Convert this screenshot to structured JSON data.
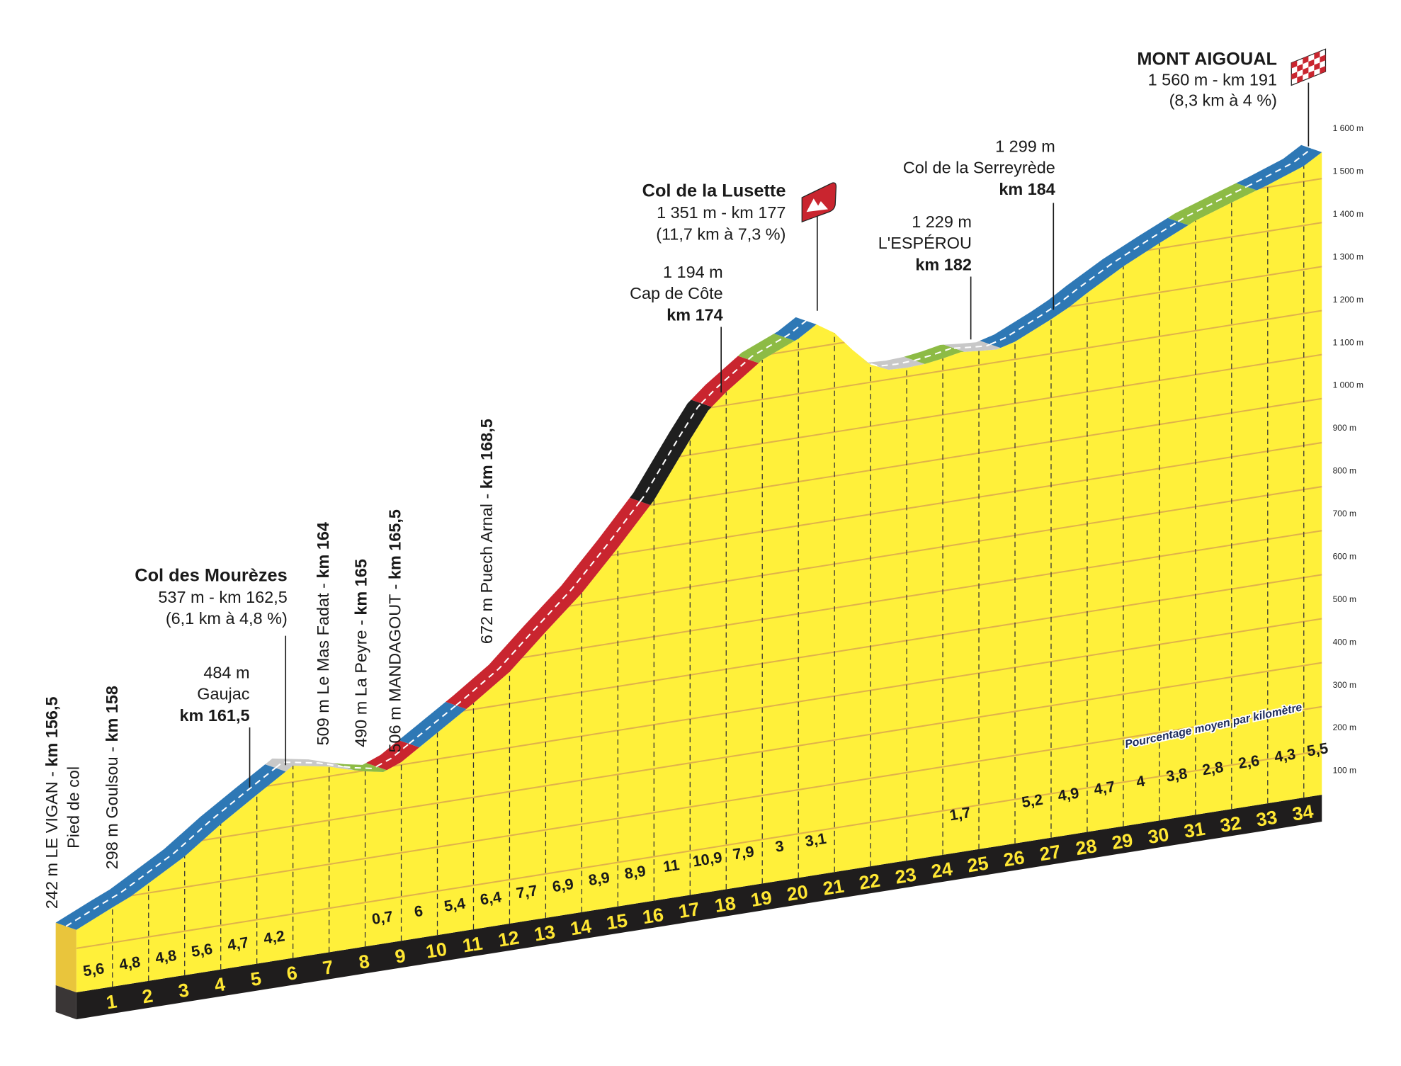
{
  "chart_data": {
    "type": "area",
    "title": "",
    "xlabel": "",
    "ylabel": "",
    "y_unit": "m",
    "y_ticks": [
      "100 m",
      "200 m",
      "300 m",
      "400 m",
      "500 m",
      "600 m",
      "700 m",
      "800 m",
      "900 m",
      "1 000 m",
      "1 100 m",
      "1 200 m",
      "1 300 m",
      "1 400 m",
      "1 500 m",
      "1 600 m"
    ],
    "y_tick_values": [
      100,
      200,
      300,
      400,
      500,
      600,
      700,
      800,
      900,
      1000,
      1100,
      1200,
      1300,
      1400,
      1500,
      1600
    ],
    "ylim": [
      100,
      1600
    ],
    "xlim": [
      0,
      34.5
    ],
    "x_tick_labels": [
      "1",
      "2",
      "3",
      "4",
      "5",
      "6",
      "7",
      "8",
      "9",
      "10",
      "11",
      "12",
      "13",
      "14",
      "15",
      "16",
      "17",
      "18",
      "19",
      "20",
      "21",
      "22",
      "23",
      "24",
      "25",
      "26",
      "27",
      "28",
      "29",
      "30",
      "31",
      "32",
      "33",
      "34"
    ],
    "profile": [
      [
        0,
        242
      ],
      [
        1,
        280
      ],
      [
        1.5,
        298
      ],
      [
        2,
        322
      ],
      [
        3,
        370
      ],
      [
        4,
        430
      ],
      [
        5,
        484
      ],
      [
        6,
        537
      ],
      [
        7,
        522
      ],
      [
        7.5,
        509
      ],
      [
        8,
        498
      ],
      [
        8.5,
        490
      ],
      [
        9,
        506
      ],
      [
        10,
        560
      ],
      [
        11,
        614
      ],
      [
        12,
        672
      ],
      [
        13,
        750
      ],
      [
        14,
        825
      ],
      [
        15,
        915
      ],
      [
        16,
        1010
      ],
      [
        17,
        1135
      ],
      [
        17.5,
        1194
      ],
      [
        18,
        1230
      ],
      [
        19,
        1290
      ],
      [
        20,
        1325
      ],
      [
        20.5,
        1351
      ],
      [
        21,
        1325
      ],
      [
        21.5,
        1280
      ],
      [
        22,
        1240
      ],
      [
        22.5,
        1222
      ],
      [
        23,
        1220
      ],
      [
        23.5,
        1222
      ],
      [
        24,
        1228
      ],
      [
        24.5,
        1236
      ],
      [
        25,
        1232
      ],
      [
        25.5,
        1229
      ],
      [
        26,
        1240
      ],
      [
        27,
        1278
      ],
      [
        27.5,
        1299
      ],
      [
        28,
        1325
      ],
      [
        29,
        1372
      ],
      [
        30,
        1412
      ],
      [
        31,
        1450
      ],
      [
        32,
        1478
      ],
      [
        33,
        1505
      ],
      [
        34,
        1535
      ],
      [
        34.5,
        1560
      ]
    ],
    "gradient_label_title": "Pourcentage moyen par kilomètre",
    "gradients": [
      {
        "segment": 1,
        "value": "5,6"
      },
      {
        "segment": 2,
        "value": "4,8"
      },
      {
        "segment": 3,
        "value": "4,8"
      },
      {
        "segment": 4,
        "value": "5,6"
      },
      {
        "segment": 5,
        "value": "4,7"
      },
      {
        "segment": 6,
        "value": "4,2"
      },
      {
        "segment": 9,
        "value": "0,7"
      },
      {
        "segment": 10,
        "value": "6"
      },
      {
        "segment": 11,
        "value": "5,4"
      },
      {
        "segment": 12,
        "value": "6,4"
      },
      {
        "segment": 13,
        "value": "7,7"
      },
      {
        "segment": 14,
        "value": "6,9"
      },
      {
        "segment": 15,
        "value": "8,9"
      },
      {
        "segment": 16,
        "value": "8,9"
      },
      {
        "segment": 17,
        "value": "11"
      },
      {
        "segment": 18,
        "value": "10,9"
      },
      {
        "segment": 19,
        "value": "7,9"
      },
      {
        "segment": 20,
        "value": "3"
      },
      {
        "segment": 21,
        "value": "3,1"
      },
      {
        "segment": 25,
        "value": "1,7"
      },
      {
        "segment": 27,
        "value": "5,2"
      },
      {
        "segment": 28,
        "value": "4,9"
      },
      {
        "segment": 29,
        "value": "4,7"
      },
      {
        "segment": 30,
        "value": "4"
      },
      {
        "segment": 31,
        "value": "3,8"
      },
      {
        "segment": 32,
        "value": "2,8"
      },
      {
        "segment": 33,
        "value": "2,6"
      },
      {
        "segment": 34,
        "value": "4,3"
      },
      {
        "segment": 35,
        "value": "5,5"
      }
    ],
    "road_segments": [
      {
        "from": 0,
        "to": 5.8,
        "category": "3-6"
      },
      {
        "from": 5.8,
        "to": 7.7,
        "category": "descent"
      },
      {
        "from": 7.7,
        "to": 8.6,
        "category": "0-3"
      },
      {
        "from": 8.6,
        "to": 9.5,
        "category": "6-9"
      },
      {
        "from": 9.5,
        "to": 10.8,
        "category": "3-6"
      },
      {
        "from": 10.8,
        "to": 15.9,
        "category": "6-9"
      },
      {
        "from": 15.9,
        "to": 17.6,
        "category": "9+"
      },
      {
        "from": 17.6,
        "to": 18.9,
        "category": "6-9"
      },
      {
        "from": 18.9,
        "to": 19.9,
        "category": "0-3"
      },
      {
        "from": 19.9,
        "to": 20.5,
        "category": "3-6"
      },
      {
        "from": 22.3,
        "to": 23.5,
        "category": "descent"
      },
      {
        "from": 23.5,
        "to": 24.6,
        "category": "0-3"
      },
      {
        "from": 24.6,
        "to": 25.6,
        "category": "descent"
      },
      {
        "from": 25.6,
        "to": 30.8,
        "category": "3-6"
      },
      {
        "from": 30.8,
        "to": 32.7,
        "category": "0-3"
      },
      {
        "from": 32.7,
        "to": 34.5,
        "category": "3-6"
      }
    ],
    "category_colors": {
      "descent": "#c8c8c8",
      "0-3": "#8dbb45",
      "3-6": "#2e78b5",
      "6-9": "#c9252f",
      "9+": "#1f1f1f"
    },
    "colors": {
      "profile_fill": "#fff03a",
      "left_face": "#e9c53c",
      "grid_line": "#e0b24a",
      "base_band": "#1f1d1d",
      "km_label": "#ffe733",
      "flag_red": "#c9252f"
    }
  },
  "annotations": {
    "start": {
      "line1_normal": "242 m LE VIGAN - ",
      "line1_bold": "km 156,5",
      "line2": "Pied de col"
    },
    "goulsou": {
      "normal": "298 m Goulsou - ",
      "bold": "km 158"
    },
    "gaujac": {
      "elevation": "484 m",
      "name": "Gaujac",
      "km": "km 161,5"
    },
    "mourezes": {
      "name": "Col des Mourèzes",
      "elevation_km": "537 m - km 162,5",
      "climb": "(6,1 km à 4,8 %)"
    },
    "mas_fadat": {
      "normal": "509 m Le Mas Fadat - ",
      "bold": "km 164"
    },
    "la_peyre": {
      "normal": "490 m La Peyre - ",
      "bold": "km 165"
    },
    "mandagout": {
      "normal": "506 m MANDAGOUT - ",
      "bold": "km 165,5"
    },
    "puech_arnal": {
      "normal": "672 m Puech Arnal - ",
      "bold": "km 168,5"
    },
    "cap_de_cote": {
      "elevation": "1 194 m",
      "name": "Cap de Côte",
      "km": "km 174"
    },
    "lusette": {
      "name": "Col de la Lusette",
      "elevation_km": "1 351 m - km 177",
      "climb": "(11,7 km à 7,3 %)",
      "icon": "mountain-flag-icon"
    },
    "esperou": {
      "elevation": "1 229 m",
      "name": "L'ESPÉROU",
      "km": "km 182"
    },
    "serreyrede": {
      "elevation": "1 299 m",
      "name": "Col de la Serreyrède",
      "km": "km 184"
    },
    "aigoual": {
      "name": "MONT AIGOUAL",
      "elevation_km": "1 560 m -  km 191",
      "climb": "(8,3 km à 4 %)",
      "icon": "checkered-flag-icon"
    }
  }
}
